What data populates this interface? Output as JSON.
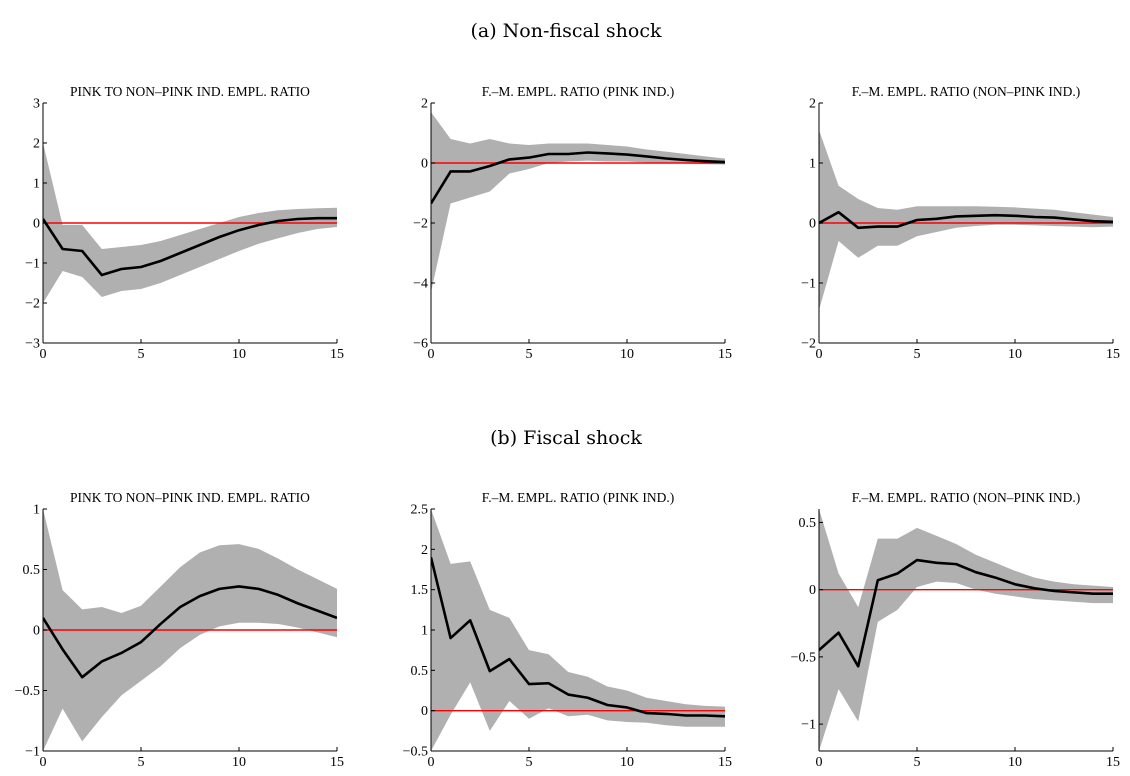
{
  "figure": {
    "sections": [
      {
        "label": "(a) Non-fiscal shock"
      },
      {
        "label": "(b) Fiscal shock"
      }
    ]
  },
  "chart_data": [
    {
      "type": "line",
      "section": "(a) Non-fiscal shock",
      "title": "PINK TO NON–PINK IND. EMPL. RATIO",
      "xlim": [
        0,
        15
      ],
      "ylim": [
        -3,
        3
      ],
      "xticks": [
        0,
        5,
        10,
        15
      ],
      "yticks": [
        -3,
        -2,
        -1,
        0,
        1,
        2,
        3
      ],
      "xtick_labels": [
        "0",
        "5",
        "10",
        "15"
      ],
      "ytick_labels": [
        "−3",
        "−2",
        "−1",
        "0",
        "1",
        "2",
        "3"
      ],
      "zero_line": true,
      "x": [
        0,
        1,
        2,
        3,
        4,
        5,
        6,
        7,
        8,
        9,
        10,
        11,
        12,
        13,
        14,
        15
      ],
      "series": [
        {
          "role": "band_upper",
          "values": [
            2.0,
            -0.05,
            -0.05,
            -0.65,
            -0.6,
            -0.55,
            -0.45,
            -0.3,
            -0.15,
            0.0,
            0.15,
            0.25,
            0.32,
            0.35,
            0.37,
            0.38
          ]
        },
        {
          "role": "band_lower",
          "values": [
            -2.0,
            -1.2,
            -1.35,
            -1.85,
            -1.7,
            -1.65,
            -1.5,
            -1.3,
            -1.1,
            -0.9,
            -0.7,
            -0.52,
            -0.38,
            -0.25,
            -0.15,
            -0.1
          ]
        },
        {
          "role": "response",
          "values": [
            0.1,
            -0.65,
            -0.7,
            -1.3,
            -1.15,
            -1.1,
            -0.95,
            -0.75,
            -0.55,
            -0.35,
            -0.18,
            -0.05,
            0.05,
            0.1,
            0.12,
            0.12
          ]
        }
      ]
    },
    {
      "type": "line",
      "section": "(a) Non-fiscal shock",
      "title": "F.–M. EMPL. RATIO (PINK IND.)",
      "xlim": [
        0,
        15
      ],
      "ylim": [
        -6,
        2
      ],
      "xticks": [
        0,
        5,
        10,
        15
      ],
      "yticks": [
        -6,
        -4,
        -2,
        0,
        2
      ],
      "xtick_labels": [
        "0",
        "5",
        "10",
        "15"
      ],
      "ytick_labels": [
        "−6",
        "−4",
        "−2",
        "0",
        "2"
      ],
      "zero_line": true,
      "x": [
        0,
        1,
        2,
        3,
        4,
        5,
        6,
        7,
        8,
        9,
        10,
        11,
        12,
        13,
        14,
        15
      ],
      "series": [
        {
          "role": "band_upper",
          "values": [
            1.7,
            0.8,
            0.65,
            0.8,
            0.65,
            0.6,
            0.65,
            0.65,
            0.65,
            0.6,
            0.55,
            0.45,
            0.38,
            0.3,
            0.22,
            0.15
          ]
        },
        {
          "role": "band_lower",
          "values": [
            -4.3,
            -1.35,
            -1.15,
            -0.95,
            -0.35,
            -0.2,
            0.0,
            0.05,
            0.08,
            0.05,
            0.05,
            0.02,
            0.0,
            -0.02,
            -0.04,
            -0.05
          ]
        },
        {
          "role": "response",
          "values": [
            -1.35,
            -0.28,
            -0.28,
            -0.1,
            0.12,
            0.18,
            0.3,
            0.3,
            0.35,
            0.32,
            0.28,
            0.22,
            0.15,
            0.1,
            0.06,
            0.03
          ]
        }
      ]
    },
    {
      "type": "line",
      "section": "(a) Non-fiscal shock",
      "title": "F.–M. EMPL. RATIO (NON–PINK IND.)",
      "xlim": [
        0,
        15
      ],
      "ylim": [
        -2,
        2
      ],
      "xticks": [
        0,
        5,
        10,
        15
      ],
      "yticks": [
        -2,
        -1,
        0,
        1,
        2
      ],
      "xtick_labels": [
        "0",
        "5",
        "10",
        "15"
      ],
      "ytick_labels": [
        "−2",
        "−1",
        "0",
        "1",
        "2"
      ],
      "zero_line": true,
      "x": [
        0,
        1,
        2,
        3,
        4,
        5,
        6,
        7,
        8,
        9,
        10,
        11,
        12,
        13,
        14,
        15
      ],
      "series": [
        {
          "role": "band_upper",
          "values": [
            1.55,
            0.62,
            0.4,
            0.25,
            0.22,
            0.28,
            0.28,
            0.28,
            0.28,
            0.27,
            0.26,
            0.24,
            0.22,
            0.18,
            0.14,
            0.1
          ]
        },
        {
          "role": "band_lower",
          "values": [
            -1.45,
            -0.3,
            -0.58,
            -0.38,
            -0.38,
            -0.22,
            -0.15,
            -0.08,
            -0.05,
            -0.03,
            -0.03,
            -0.04,
            -0.05,
            -0.06,
            -0.07,
            -0.06
          ]
        },
        {
          "role": "response",
          "values": [
            0.0,
            0.18,
            -0.08,
            -0.06,
            -0.06,
            0.05,
            0.07,
            0.11,
            0.12,
            0.13,
            0.12,
            0.1,
            0.09,
            0.06,
            0.03,
            0.02
          ]
        }
      ]
    },
    {
      "type": "line",
      "section": "(b) Fiscal shock",
      "title": "PINK TO NON–PINK IND. EMPL. RATIO",
      "xlim": [
        0,
        15
      ],
      "ylim": [
        -1,
        1
      ],
      "xticks": [
        0,
        5,
        10,
        15
      ],
      "yticks": [
        -1,
        -0.5,
        0,
        0.5,
        1
      ],
      "xtick_labels": [
        "0",
        "5",
        "10",
        "15"
      ],
      "ytick_labels": [
        "−1",
        "−0.5",
        "0",
        "0.5",
        "1"
      ],
      "zero_line": true,
      "x": [
        0,
        1,
        2,
        3,
        4,
        5,
        6,
        7,
        8,
        9,
        10,
        11,
        12,
        13,
        14,
        15
      ],
      "series": [
        {
          "role": "band_upper",
          "values": [
            1.0,
            0.33,
            0.17,
            0.19,
            0.14,
            0.2,
            0.36,
            0.52,
            0.64,
            0.7,
            0.71,
            0.67,
            0.59,
            0.5,
            0.42,
            0.34
          ]
        },
        {
          "role": "band_lower",
          "values": [
            -1.0,
            -0.65,
            -0.92,
            -0.72,
            -0.54,
            -0.42,
            -0.3,
            -0.15,
            -0.04,
            0.03,
            0.06,
            0.06,
            0.05,
            0.02,
            -0.02,
            -0.06
          ]
        },
        {
          "role": "response",
          "values": [
            0.1,
            -0.16,
            -0.39,
            -0.26,
            -0.19,
            -0.1,
            0.05,
            0.19,
            0.28,
            0.34,
            0.36,
            0.34,
            0.29,
            0.22,
            0.16,
            0.1
          ]
        }
      ]
    },
    {
      "type": "line",
      "section": "(b) Fiscal shock",
      "title": "F.–M. EMPL. RATIO (PINK IND.)",
      "xlim": [
        0,
        15
      ],
      "ylim": [
        -0.5,
        2.5
      ],
      "xticks": [
        0,
        5,
        10,
        15
      ],
      "yticks": [
        -0.5,
        0,
        0.5,
        1,
        1.5,
        2,
        2.5
      ],
      "xtick_labels": [
        "0",
        "5",
        "10",
        "15"
      ],
      "ytick_labels": [
        "−0.5",
        "0",
        "0.5",
        "1",
        "1.5",
        "2",
        "2.5"
      ],
      "zero_line": true,
      "x": [
        0,
        1,
        2,
        3,
        4,
        5,
        6,
        7,
        8,
        9,
        10,
        11,
        12,
        13,
        14,
        15
      ],
      "series": [
        {
          "role": "band_upper",
          "values": [
            2.5,
            1.82,
            1.85,
            1.25,
            1.15,
            0.75,
            0.7,
            0.48,
            0.42,
            0.3,
            0.25,
            0.16,
            0.12,
            0.08,
            0.06,
            0.05
          ]
        },
        {
          "role": "band_lower",
          "values": [
            -0.5,
            -0.05,
            0.35,
            -0.25,
            0.12,
            -0.1,
            0.03,
            -0.07,
            -0.05,
            -0.12,
            -0.14,
            -0.15,
            -0.18,
            -0.2,
            -0.2,
            -0.2
          ]
        },
        {
          "role": "response",
          "values": [
            1.9,
            0.9,
            1.12,
            0.49,
            0.64,
            0.33,
            0.34,
            0.2,
            0.16,
            0.07,
            0.04,
            -0.03,
            -0.04,
            -0.06,
            -0.06,
            -0.07
          ]
        }
      ]
    },
    {
      "type": "line",
      "section": "(b) Fiscal shock",
      "title": "F.–M. EMPL. RATIO (NON–PINK IND.)",
      "xlim": [
        0,
        15
      ],
      "ylim": [
        -1.2,
        0.6
      ],
      "xticks": [
        0,
        5,
        10,
        15
      ],
      "yticks": [
        -1,
        -0.5,
        0,
        0.5
      ],
      "xtick_labels": [
        "0",
        "5",
        "10",
        "15"
      ],
      "ytick_labels": [
        "−1",
        "−0.5",
        "0",
        "0.5"
      ],
      "zero_line": true,
      "x": [
        0,
        1,
        2,
        3,
        4,
        5,
        6,
        7,
        8,
        9,
        10,
        11,
        12,
        13,
        14,
        15
      ],
      "series": [
        {
          "role": "band_upper",
          "values": [
            0.6,
            0.12,
            -0.13,
            0.38,
            0.38,
            0.46,
            0.4,
            0.34,
            0.26,
            0.2,
            0.14,
            0.09,
            0.06,
            0.04,
            0.03,
            0.02
          ]
        },
        {
          "role": "band_lower",
          "values": [
            -1.2,
            -0.74,
            -0.98,
            -0.24,
            -0.15,
            0.02,
            0.06,
            0.05,
            0.0,
            -0.03,
            -0.05,
            -0.07,
            -0.08,
            -0.09,
            -0.1,
            -0.1
          ]
        },
        {
          "role": "response",
          "values": [
            -0.45,
            -0.32,
            -0.57,
            0.07,
            0.12,
            0.22,
            0.2,
            0.19,
            0.13,
            0.09,
            0.04,
            0.01,
            -0.01,
            -0.02,
            -0.03,
            -0.03
          ]
        }
      ]
    }
  ],
  "colors": {
    "band": "#b0b0b0",
    "response": "#000000",
    "zero_line": "#ff0000",
    "axis": "#000000"
  }
}
